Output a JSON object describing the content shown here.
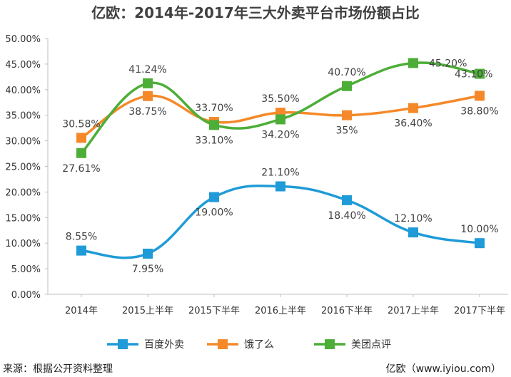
{
  "chart_data": {
    "type": "line",
    "title": "亿欧：2014年-2017年三大外卖平台市场份额占比",
    "categories": [
      "2014年",
      "2015上半年",
      "2015下半年",
      "2016上半年",
      "2016下半年",
      "2017上半年",
      "2017下半年"
    ],
    "series": [
      {
        "name": "百度外卖",
        "color": "#1f9bd7",
        "values": [
          8.55,
          7.95,
          19.0,
          21.1,
          18.4,
          12.1,
          10.0
        ],
        "labels": [
          "8.55%",
          "7.95%",
          "19.00%",
          "21.10%",
          "18.40%",
          "12.10%",
          "10.00%"
        ]
      },
      {
        "name": "饿了么",
        "color": "#f5892a",
        "values": [
          30.58,
          38.75,
          33.7,
          35.5,
          35.0,
          36.4,
          38.8
        ],
        "labels": [
          "30.58%",
          "38.75%",
          "33.70%",
          "35.50%",
          "35%",
          "36.40%",
          "38.80%"
        ]
      },
      {
        "name": "美团点评",
        "color": "#4cae37",
        "values": [
          27.61,
          41.24,
          33.1,
          34.2,
          40.7,
          45.2,
          43.1
        ],
        "labels": [
          "27.61%",
          "41.24%",
          "33.10%",
          "34.20%",
          "40.70%",
          "45.20%",
          "43.10%"
        ]
      }
    ],
    "y_ticks": [
      "0.00%",
      "5.00%",
      "10.00%",
      "15.00%",
      "20.00%",
      "25.00%",
      "30.00%",
      "35.00%",
      "40.00%",
      "45.00%",
      "50.00%"
    ],
    "ylim": [
      0,
      50
    ],
    "y_unit": "%",
    "grid": false,
    "legend_position": "bottom"
  },
  "footer": {
    "source": "来源：根据公开资料整理",
    "credit": "亿欧（www.iyiou.com）"
  }
}
